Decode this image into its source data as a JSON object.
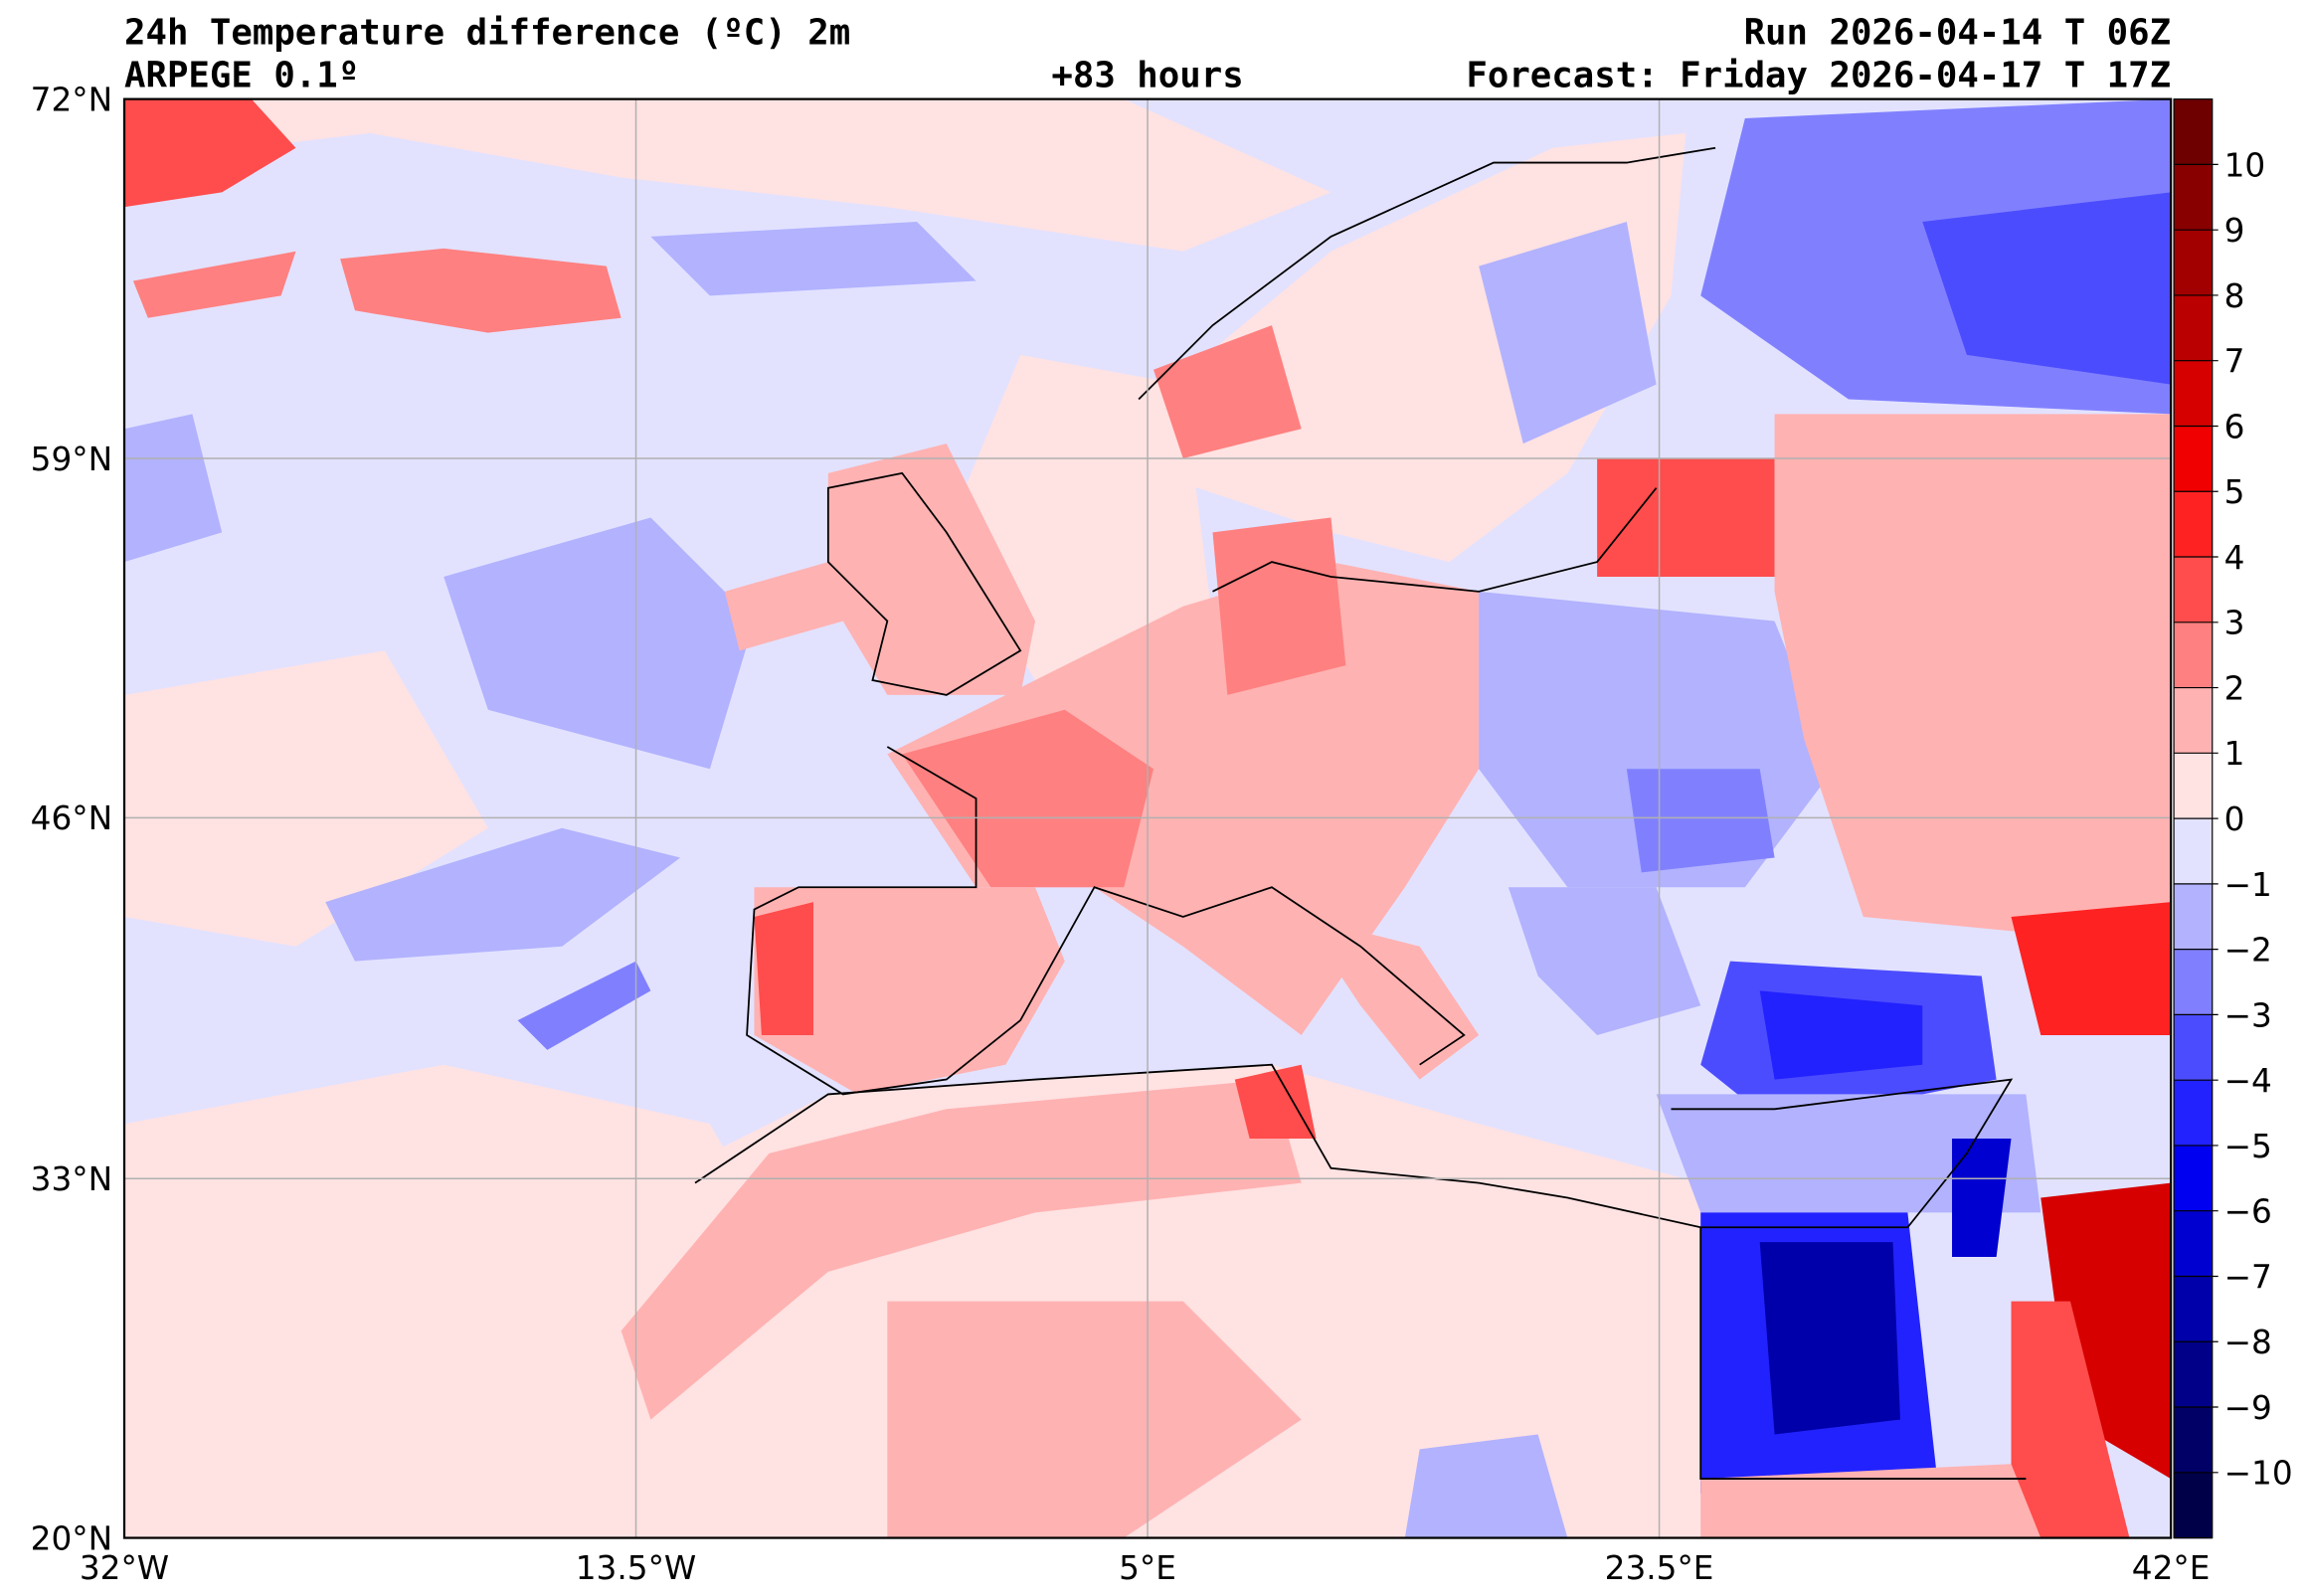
{
  "header": {
    "title": "24h Temperature difference (ºC) 2m",
    "model": "ARPEGE 0.1º",
    "lead_time": "+83 hours",
    "run": "Run 2026-04-14 T 06Z",
    "forecast": "Forecast: Friday 2026-04-17 T 17Z"
  },
  "axes": {
    "lon_labels": [
      "32°W",
      "13.5°W",
      "5°E",
      "23.5°E",
      "42°E"
    ],
    "lat_labels": [
      "20°N",
      "33°N",
      "46°N",
      "59°N",
      "72°N"
    ],
    "lon_values": [
      -32,
      -13.5,
      5,
      23.5,
      42
    ],
    "lat_values": [
      20,
      33,
      46,
      59,
      72
    ]
  },
  "colorbar": {
    "ticks": [
      "10",
      "9",
      "8",
      "7",
      "6",
      "5",
      "4",
      "3",
      "2",
      "1",
      "0",
      "−1",
      "−2",
      "−3",
      "−4",
      "−5",
      "−6",
      "−7",
      "−8",
      "−9",
      "−10"
    ],
    "colors": [
      "#6e0000",
      "#880000",
      "#a20000",
      "#ba0000",
      "#d60000",
      "#f00000",
      "#ff2222",
      "#ff4c4c",
      "#ff8080",
      "#ffb2b2",
      "#ffe2e2",
      "#e2e2ff",
      "#b2b2ff",
      "#8080ff",
      "#4c4cff",
      "#2222ff",
      "#0000f0",
      "#0000d0",
      "#0000aa",
      "#000088",
      "#000066",
      "#000048"
    ]
  }
}
